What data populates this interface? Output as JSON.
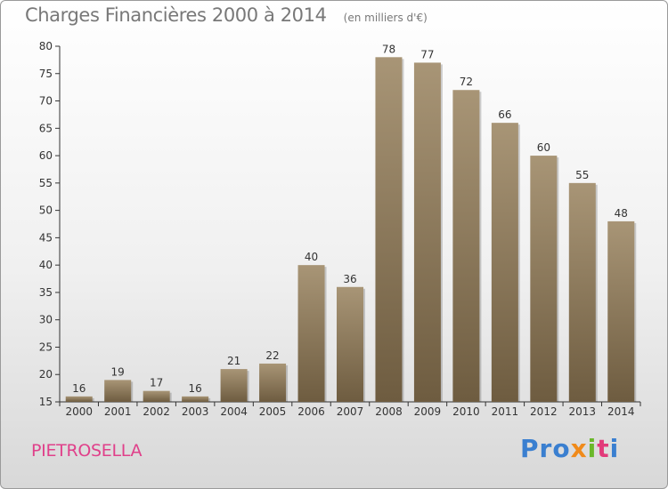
{
  "header": {
    "title": "Charges Financières 2000 à 2014",
    "subtitle": "(en milliers d'€)"
  },
  "footer": {
    "commune": "PIETROSELLA",
    "logo": [
      "Pro",
      "x",
      "i",
      "t",
      "i"
    ]
  },
  "colors": {
    "bar_top": "#a89576",
    "bar_bottom": "#6e5c40",
    "commune": "#e0408a"
  },
  "chart_data": {
    "type": "bar",
    "title": "Charges Financières 2000 à 2014",
    "subtitle": "(en milliers d'€)",
    "xlabel": "",
    "ylabel": "",
    "categories": [
      "2000",
      "2001",
      "2002",
      "2003",
      "2004",
      "2005",
      "2006",
      "2007",
      "2008",
      "2009",
      "2010",
      "2011",
      "2012",
      "2013",
      "2014"
    ],
    "values": [
      16,
      19,
      17,
      16,
      21,
      22,
      40,
      36,
      78,
      77,
      72,
      66,
      60,
      55,
      48
    ],
    "ylim": [
      15,
      80
    ],
    "yticks": [
      15,
      20,
      25,
      30,
      35,
      40,
      45,
      50,
      55,
      60,
      65,
      70,
      75,
      80
    ],
    "grid": false,
    "legend": "none"
  }
}
